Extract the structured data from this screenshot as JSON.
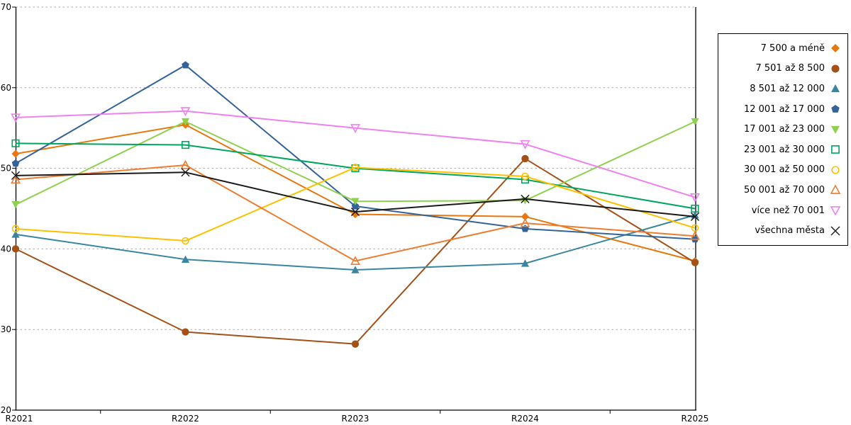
{
  "chart_data": {
    "type": "line",
    "categories": [
      "R2021",
      "R2022",
      "R2023",
      "R2024",
      "R2025"
    ],
    "series": [
      {
        "name": "7 500 a méně",
        "marker": "diamond-filled",
        "color": "#E8780E",
        "values": [
          51.8,
          55.4,
          44.3,
          44.0,
          38.5
        ]
      },
      {
        "name": "7 501 až 8 500",
        "marker": "circle-filled",
        "color": "#A35117",
        "values": [
          40.0,
          29.7,
          28.2,
          51.2,
          38.3
        ]
      },
      {
        "name": "8 501 až 12 000",
        "marker": "triangle-up-filled",
        "color": "#3A86A0",
        "values": [
          41.8,
          38.7,
          37.4,
          38.2,
          44.2
        ]
      },
      {
        "name": "12 001 až 17 000",
        "marker": "pentagon-filled",
        "color": "#33639B",
        "values": [
          50.6,
          62.8,
          45.3,
          42.5,
          41.2
        ]
      },
      {
        "name": "17 001 až 23 000",
        "marker": "triangle-down-filled",
        "color": "#8FD14F",
        "values": [
          45.5,
          55.8,
          45.9,
          46.0,
          55.8
        ]
      },
      {
        "name": "23 001 až 30 000",
        "marker": "square-open",
        "color": "#00A560",
        "values": [
          53.1,
          52.9,
          50.0,
          48.6,
          45.0
        ]
      },
      {
        "name": "30 001 až 50 000",
        "marker": "circle-open",
        "color": "#FFC000",
        "values": [
          42.5,
          41.0,
          50.1,
          49.0,
          42.6
        ]
      },
      {
        "name": "50 001 až 70 000",
        "marker": "triangle-up-open",
        "color": "#ED7D31",
        "values": [
          48.6,
          50.4,
          38.5,
          43.2,
          41.6
        ]
      },
      {
        "name": "více než 70 001",
        "marker": "triangle-down-open",
        "color": "#EE82EE",
        "values": [
          56.3,
          57.1,
          55.0,
          53.0,
          46.4
        ]
      },
      {
        "name": "všechna města",
        "marker": "x",
        "color": "#1A1A1A",
        "values": [
          49.1,
          49.5,
          44.6,
          46.2,
          44.0
        ]
      }
    ],
    "title": "",
    "xlabel": "",
    "ylabel": "",
    "ylim": [
      20,
      70
    ],
    "yticks": [
      20,
      30,
      40,
      50,
      60,
      70
    ],
    "grid": "horizontal-dashed",
    "grid_color": "#ABABAB",
    "axis_color": "#000000",
    "legend_position": "right"
  }
}
